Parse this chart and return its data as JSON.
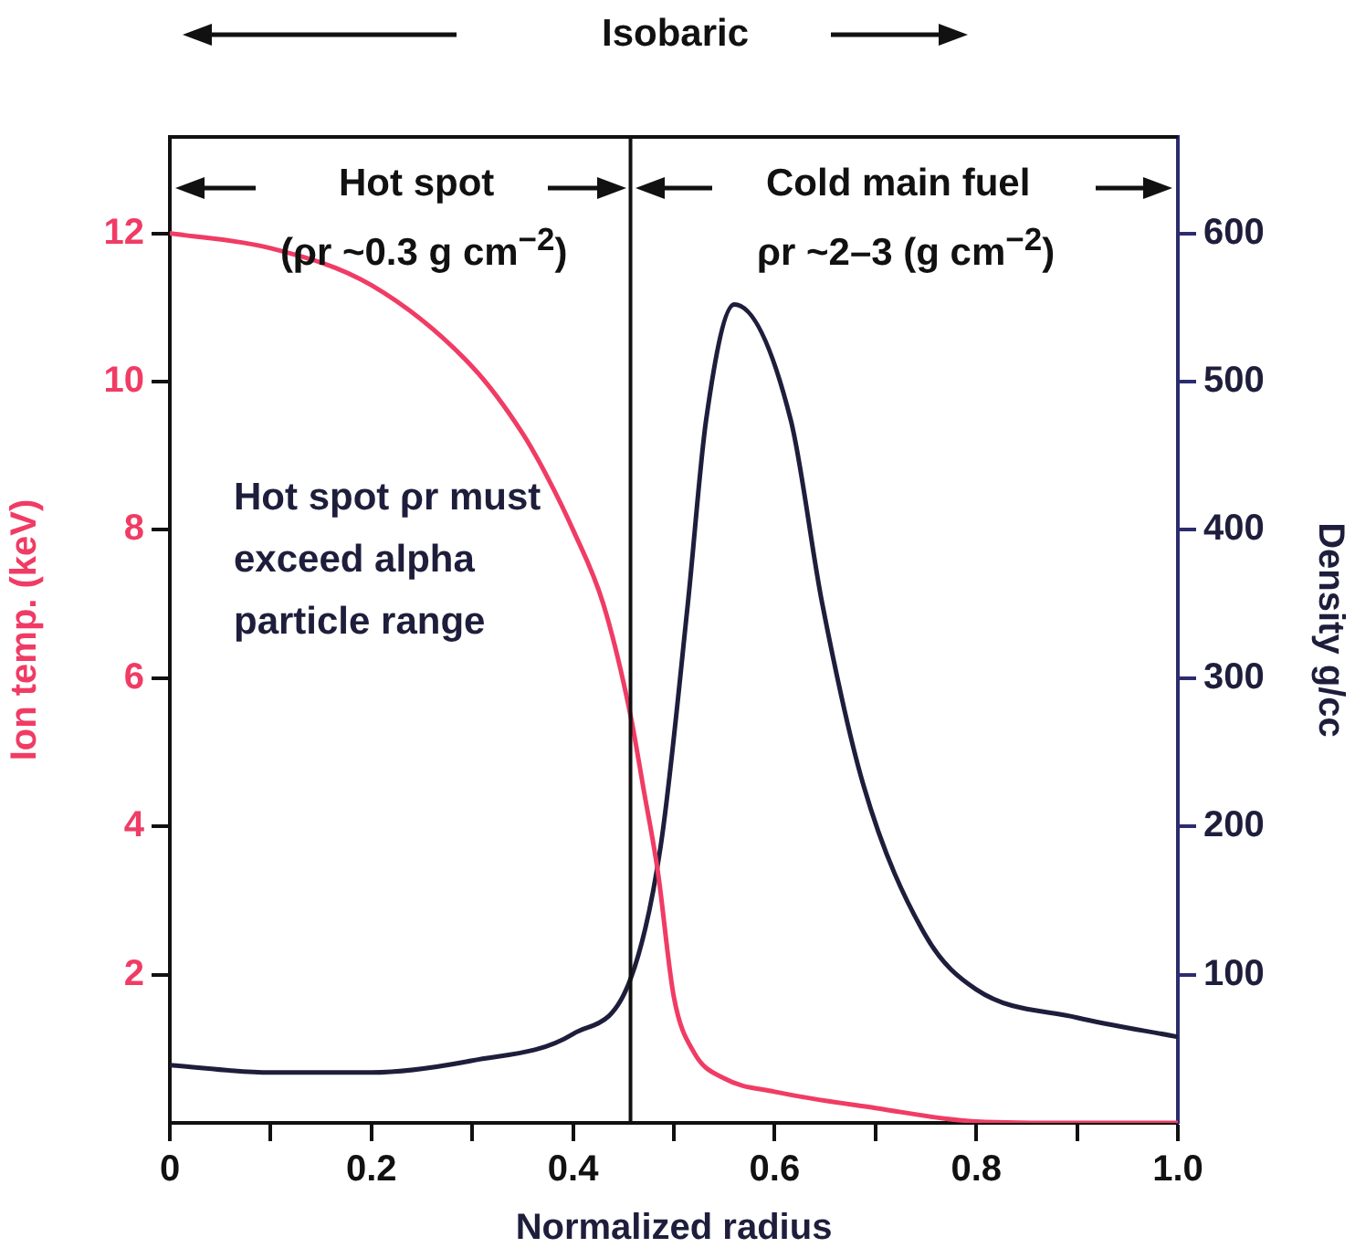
{
  "chart_data": {
    "type": "line",
    "xlabel": "Normalized radius",
    "ylabel": "Ion temp. (keV)",
    "y2label": "Density g/cc",
    "xlim": [
      0,
      1
    ],
    "xticks": [
      0,
      {
        "value": 0.1,
        "label": null
      },
      0.2,
      {
        "value": 0.3,
        "label": null
      },
      0.4,
      {
        "value": 0.5,
        "label": null
      },
      0.6,
      {
        "value": 0.7,
        "label": null
      },
      0.8,
      {
        "value": 0.9,
        "label": null
      },
      {
        "value": 1,
        "label": "1.0"
      }
    ],
    "ylim": [
      0,
      13.3
    ],
    "yticks": [
      2,
      4,
      6,
      8,
      10,
      12
    ],
    "y2lim": [
      0,
      665
    ],
    "y2ticks": [
      100,
      200,
      300,
      400,
      500,
      600
    ],
    "marker": "none",
    "line_style": "solid",
    "series": [
      {
        "color": "#f03c64",
        "x": [
          0,
          0.1,
          0.2,
          0.3,
          0.35,
          0.375,
          0.4,
          0.43,
          0.457,
          0.47,
          0.484,
          0.5,
          0.52,
          0.55,
          0.6,
          0.7,
          0.8,
          0.9,
          1.0
        ],
        "values": [
          12,
          11.8,
          11.3,
          10.2,
          9.3,
          8.7,
          8.0,
          7.0,
          5.5,
          4.5,
          3.4,
          1.7,
          0.95,
          0.6,
          0.42,
          0.2,
          0.02,
          0,
          0
        ]
      },
      {
        "axis": "y2",
        "color": "#1e1e3c",
        "x": [
          0,
          0.1,
          0.2,
          0.3,
          0.4,
          0.457,
          0.487,
          0.514,
          0.532,
          0.56,
          0.616,
          0.647,
          0.688,
          0.75,
          0.8,
          0.9,
          1.0
        ],
        "values": [
          39,
          34,
          34,
          42,
          60,
          97,
          187,
          351,
          474,
          552,
          474,
          351,
          228,
          126,
          90,
          71,
          58
        ]
      }
    ],
    "ref_lines": [
      {
        "axis": "x",
        "value": 0.457,
        "color": "#111111"
      }
    ],
    "annotations": [
      "Isobaric",
      "Hot spot",
      "(ρr ~0.3 g cm$^{−2}$)",
      "Cold main fuel",
      "ρr ~2–3 (g cm$^{−2}$)",
      "Hot spot ρr must exceed alpha particle range"
    ]
  }
}
